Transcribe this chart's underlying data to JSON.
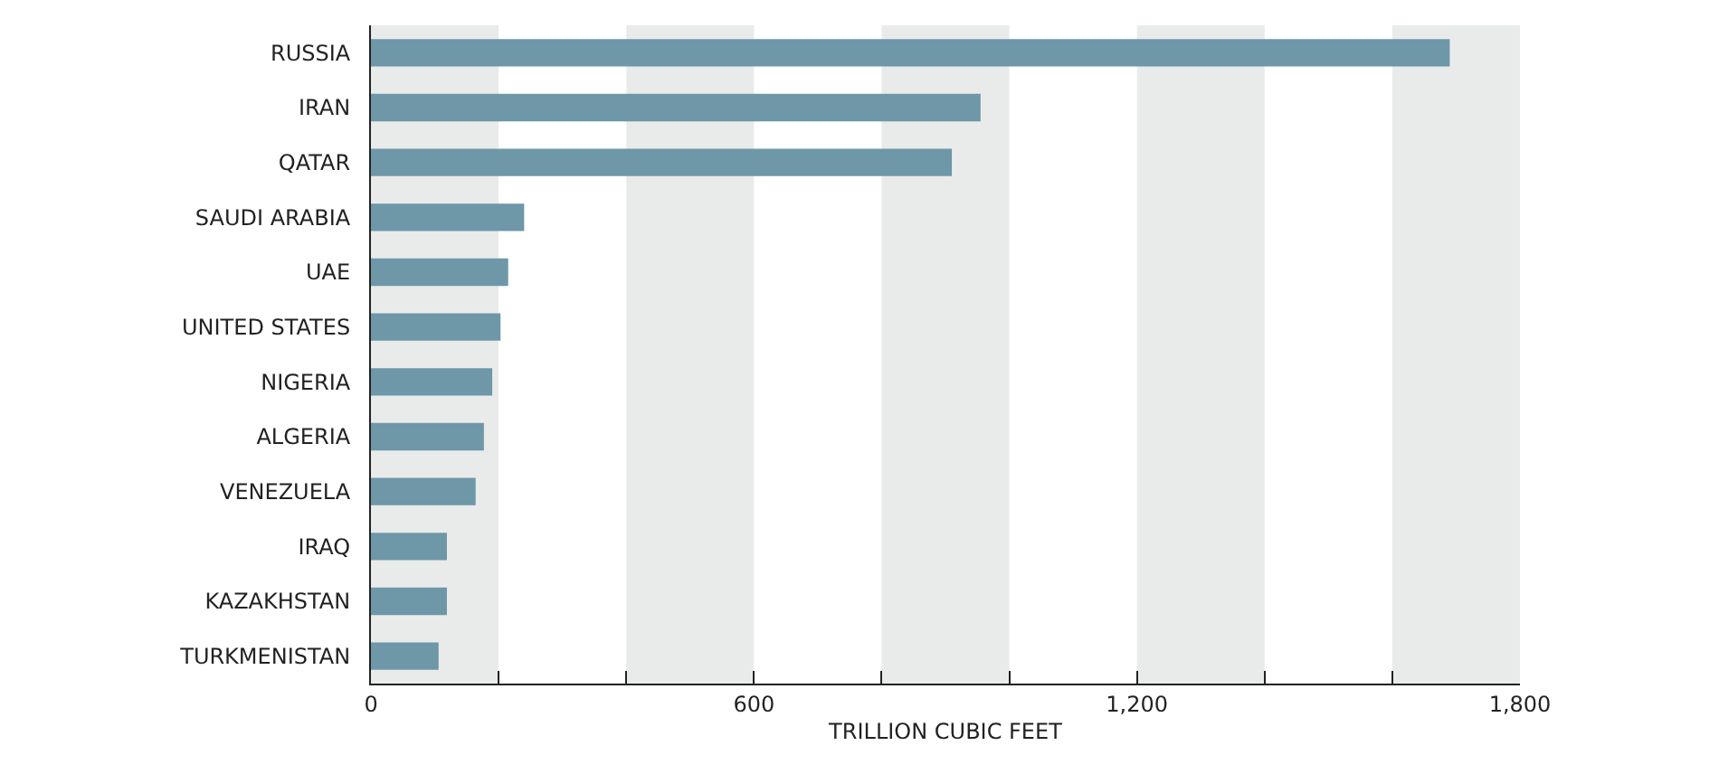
{
  "chart_data": {
    "type": "bar",
    "orientation": "horizontal",
    "xlabel": "TRILLION CUBIC FEET",
    "categories": [
      "RUSSIA",
      "IRAN",
      "QATAR",
      "SAUDI ARABIA",
      "UAE",
      "UNITED STATES",
      "NIGERIA",
      "ALGERIA",
      "VENEZUELA",
      "IRAQ",
      "KAZAKHSTAN",
      "TURKMENISTAN"
    ],
    "values": [
      1690,
      955,
      910,
      240,
      215,
      203,
      190,
      177,
      164,
      119,
      119,
      106
    ],
    "color": "#6e97a8",
    "xlim": [
      0,
      1800
    ],
    "xticks": [
      0,
      {
        "value": 200,
        "label": null
      },
      {
        "value": 400,
        "label": null
      },
      600,
      {
        "value": 800,
        "label": null
      },
      {
        "value": 1000,
        "label": null
      },
      {
        "value": 1200,
        "label": "1,200"
      },
      {
        "value": 1400,
        "label": null
      },
      {
        "value": 1600,
        "label": null
      },
      {
        "value": 1800,
        "label": "1,800"
      }
    ],
    "bands": [
      {
        "axis": "x",
        "from": 0,
        "to": 200,
        "color": "#e9ebea"
      },
      {
        "axis": "x",
        "from": 400,
        "to": 600,
        "color": "#e9ebea"
      },
      {
        "axis": "x",
        "from": 800,
        "to": 1000,
        "color": "#e9ebea"
      },
      {
        "axis": "x",
        "from": 1200,
        "to": 1400,
        "color": "#e9ebea"
      },
      {
        "axis": "x",
        "from": 1600,
        "to": 1800,
        "color": "#e9ebea"
      }
    ],
    "grid": false
  }
}
